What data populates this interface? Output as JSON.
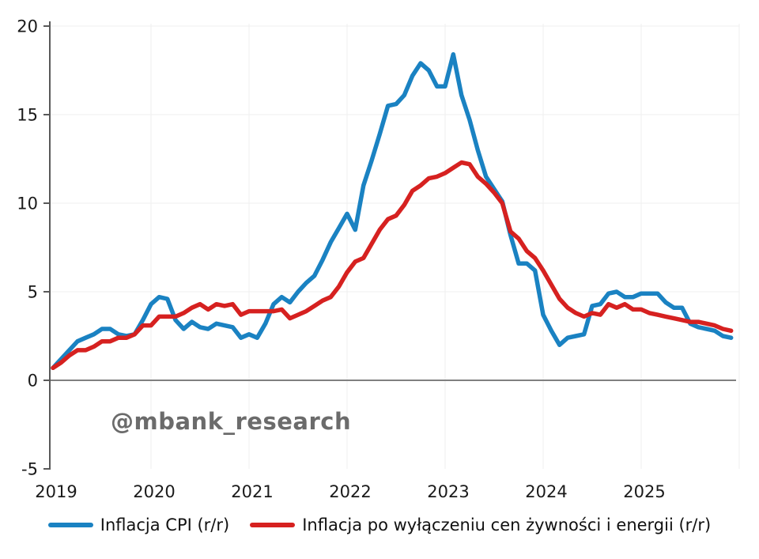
{
  "chart_data": {
    "type": "line",
    "title": "",
    "xlabel": "",
    "ylabel": "",
    "x_unit": "month",
    "x_start": "2019-01",
    "x_end": "2025-12",
    "x_tick_labels": [
      "2019",
      "2020",
      "2021",
      "2022",
      "2023",
      "2024",
      "2025"
    ],
    "y_ticks": [
      -5,
      0,
      5,
      10,
      15,
      20
    ],
    "ylim": [
      -5,
      20
    ],
    "grid": "faint",
    "legend_position": "bottom",
    "series": [
      {
        "name": "Inflacja CPI (r/r)",
        "color": "#1a82c2",
        "values": [
          0.7,
          1.2,
          1.7,
          2.2,
          2.4,
          2.6,
          2.9,
          2.9,
          2.6,
          2.5,
          2.6,
          3.4,
          4.3,
          4.7,
          4.6,
          3.4,
          2.9,
          3.3,
          3.0,
          2.9,
          3.2,
          3.1,
          3.0,
          2.4,
          2.6,
          2.4,
          3.2,
          4.3,
          4.7,
          4.4,
          5.0,
          5.5,
          5.9,
          6.8,
          7.8,
          8.6,
          9.4,
          8.5,
          11.0,
          12.4,
          13.9,
          15.5,
          15.6,
          16.1,
          17.2,
          17.9,
          17.5,
          16.6,
          16.6,
          18.4,
          16.1,
          14.7,
          13.0,
          11.5,
          10.8,
          10.1,
          8.2,
          6.6,
          6.6,
          6.2,
          3.7,
          2.8,
          2.0,
          2.4,
          2.5,
          2.6,
          4.2,
          4.3,
          4.9,
          5.0,
          4.7,
          4.7,
          4.9,
          4.9,
          4.9,
          4.4,
          4.1,
          4.1,
          3.2,
          3.0,
          2.9,
          2.8,
          2.5,
          2.4
        ]
      },
      {
        "name": "Inflacja po wyłączeniu cen żywności i energii (r/r)",
        "color": "#d62120",
        "values": [
          0.7,
          1.0,
          1.4,
          1.7,
          1.7,
          1.9,
          2.2,
          2.2,
          2.4,
          2.4,
          2.6,
          3.1,
          3.1,
          3.6,
          3.6,
          3.6,
          3.8,
          4.1,
          4.3,
          4.0,
          4.3,
          4.2,
          4.3,
          3.7,
          3.9,
          3.9,
          3.9,
          3.9,
          4.0,
          3.5,
          3.7,
          3.9,
          4.2,
          4.5,
          4.7,
          5.3,
          6.1,
          6.7,
          6.9,
          7.7,
          8.5,
          9.1,
          9.3,
          9.9,
          10.7,
          11.0,
          11.4,
          11.5,
          11.7,
          12.0,
          12.3,
          12.2,
          11.5,
          11.1,
          10.6,
          10.0,
          8.4,
          8.0,
          7.3,
          6.9,
          6.2,
          5.4,
          4.6,
          4.1,
          3.8,
          3.6,
          3.8,
          3.7,
          4.3,
          4.1,
          4.3,
          4.0,
          4.0,
          3.8,
          3.7,
          3.6,
          3.5,
          3.4,
          3.3,
          3.3,
          3.2,
          3.1,
          2.9,
          2.8
        ]
      }
    ]
  },
  "watermark": {
    "text": "@mbank_research",
    "color": "#6b6b6b"
  },
  "axis_colors": {
    "spine": "#595959",
    "zero_line": "#808080",
    "gridline": "#efefef",
    "tick_label": "#1a1a1a"
  }
}
